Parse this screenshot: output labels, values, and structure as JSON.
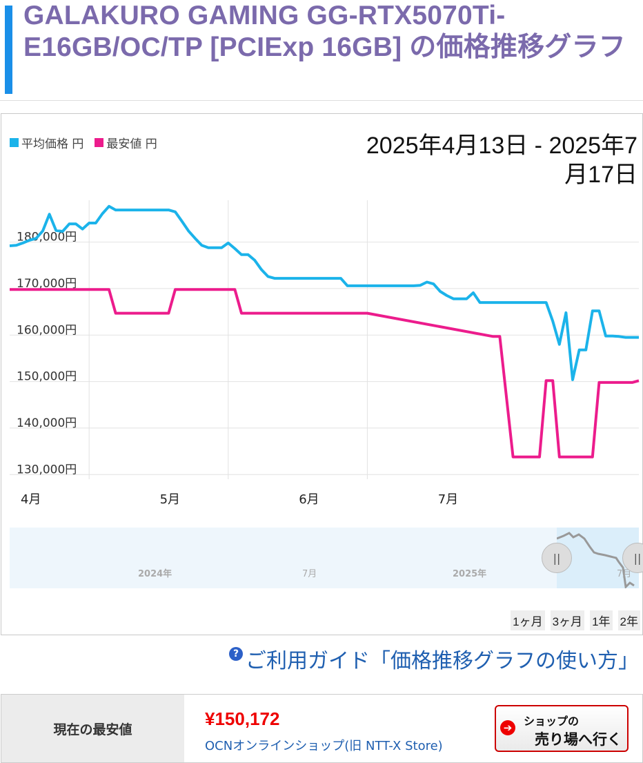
{
  "page": {
    "title": "GALAKURO GAMING GG-RTX5070Ti-E16GB/OC/TP [PCIExp 16GB] の価格推移グラフ",
    "accent_color": "#1a8fe8",
    "title_color": "#7b6aac"
  },
  "legend": [
    {
      "label": "平均価格 円",
      "color": "#1bb3ea"
    },
    {
      "label": "最安値 円",
      "color": "#ec1c8c"
    }
  ],
  "date_range": "2025年4月13日 - 2025年7月17日",
  "chart_data": {
    "type": "line",
    "ylabels": [
      "180,000円",
      "170,000円",
      "160,000円",
      "150,000円",
      "140,000円",
      "130,000円"
    ],
    "yticks": [
      180000,
      170000,
      160000,
      150000,
      140000,
      130000
    ],
    "xlabels": [
      "4月",
      "5月",
      "6月",
      "7月"
    ],
    "ylim": [
      129000,
      189000
    ],
    "grid": true,
    "series": [
      {
        "name": "平均価格 円",
        "color": "#1bb3ea",
        "x": [
          "2025-04-13",
          "2025-04-14",
          "2025-04-15",
          "2025-04-16",
          "2025-04-17",
          "2025-04-18",
          "2025-04-19",
          "2025-04-20",
          "2025-04-21",
          "2025-04-22",
          "2025-04-23",
          "2025-04-24",
          "2025-04-25",
          "2025-04-26",
          "2025-04-27",
          "2025-04-28",
          "2025-04-29",
          "2025-04-30",
          "2025-05-01",
          "2025-05-02",
          "2025-05-03",
          "2025-05-04",
          "2025-05-05",
          "2025-05-06",
          "2025-05-07",
          "2025-05-08",
          "2025-05-09",
          "2025-05-10",
          "2025-05-11",
          "2025-05-12",
          "2025-05-13",
          "2025-05-14",
          "2025-05-15",
          "2025-05-16",
          "2025-05-17",
          "2025-05-18",
          "2025-05-19",
          "2025-05-20",
          "2025-05-21",
          "2025-05-22",
          "2025-05-23",
          "2025-05-24",
          "2025-05-25",
          "2025-05-26",
          "2025-05-27",
          "2025-05-28",
          "2025-05-29",
          "2025-05-30",
          "2025-05-31",
          "2025-06-01",
          "2025-06-02",
          "2025-06-03",
          "2025-06-04",
          "2025-06-05",
          "2025-06-06",
          "2025-06-07",
          "2025-06-08",
          "2025-06-09",
          "2025-06-10",
          "2025-06-11",
          "2025-06-12",
          "2025-06-13",
          "2025-06-14",
          "2025-06-15",
          "2025-06-16",
          "2025-06-17",
          "2025-06-18",
          "2025-06-19",
          "2025-06-20",
          "2025-06-21",
          "2025-06-22",
          "2025-06-23",
          "2025-06-24",
          "2025-06-25",
          "2025-06-26",
          "2025-06-27",
          "2025-06-28",
          "2025-06-29",
          "2025-06-30",
          "2025-07-01",
          "2025-07-02",
          "2025-07-03",
          "2025-07-04",
          "2025-07-05",
          "2025-07-06",
          "2025-07-07",
          "2025-07-08",
          "2025-07-09",
          "2025-07-10",
          "2025-07-11",
          "2025-07-12",
          "2025-07-13",
          "2025-07-14",
          "2025-07-15",
          "2025-07-16",
          "2025-07-17"
        ],
        "values": [
          179200,
          179300,
          179800,
          180400,
          180800,
          182400,
          186000,
          182500,
          182300,
          183900,
          183900,
          182800,
          184100,
          184100,
          186100,
          187700,
          186900,
          186900,
          186900,
          186900,
          186900,
          186900,
          186900,
          186900,
          186900,
          186500,
          184500,
          182400,
          180800,
          179300,
          178800,
          178800,
          178800,
          179800,
          178600,
          177300,
          177300,
          176100,
          174100,
          172600,
          172200,
          172200,
          172200,
          172200,
          172200,
          172200,
          172200,
          172200,
          172200,
          172200,
          172200,
          170600,
          170600,
          170600,
          170600,
          170600,
          170600,
          170600,
          170600,
          170600,
          170600,
          170600,
          170700,
          171400,
          171000,
          169400,
          168500,
          167800,
          167800,
          167800,
          169100,
          167000,
          167000,
          167000,
          167000,
          167000,
          167000,
          167000,
          167000,
          167000,
          167000,
          167000,
          163000,
          158000,
          164800,
          150400,
          156800,
          156800,
          165200,
          165200,
          159800,
          159800,
          159700,
          159500,
          159500,
          159500
        ]
      },
      {
        "name": "最安値 円",
        "color": "#ec1c8c",
        "x": [
          "2025-04-13",
          "2025-04-23",
          "2025-04-24",
          "2025-04-25",
          "2025-04-26",
          "2025-04-27",
          "2025-04-28",
          "2025-04-29",
          "2025-05-06",
          "2025-05-07",
          "2025-05-08",
          "2025-05-16",
          "2025-05-17",
          "2025-05-18",
          "2025-06-02",
          "2025-06-03",
          "2025-06-04",
          "2025-06-05",
          "2025-06-06",
          "2025-06-25",
          "2025-06-26",
          "2025-06-28",
          "2025-07-02",
          "2025-07-03",
          "2025-07-04",
          "2025-07-05",
          "2025-07-06",
          "2025-07-10",
          "2025-07-11",
          "2025-07-16",
          "2025-07-17"
        ],
        "values": [
          169800,
          169800,
          169800,
          169800,
          169800,
          169800,
          169800,
          164700,
          164700,
          164700,
          169800,
          169800,
          169800,
          164700,
          164700,
          164700,
          164700,
          164700,
          164700,
          159700,
          159700,
          133800,
          133800,
          150200,
          150200,
          133800,
          133800,
          133800,
          149800,
          149800,
          150200
        ]
      }
    ]
  },
  "navigator": {
    "labels": [
      "2024年",
      "7月",
      "2025年",
      "7月"
    ],
    "handle_glyph": "||"
  },
  "range_buttons": [
    "1ヶ月",
    "3ヶ月",
    "1年",
    "2年"
  ],
  "guide": {
    "icon": "?",
    "text": "ご利用ガイド「価格推移グラフの使い方」"
  },
  "price_box": {
    "label": "現在の最安値",
    "price": "¥150,172",
    "shop": "OCNオンラインショップ(旧 NTT-X Store)",
    "button_line1": "ショップの",
    "button_line2": "売り場へ行く",
    "button_arrow": "➔"
  }
}
